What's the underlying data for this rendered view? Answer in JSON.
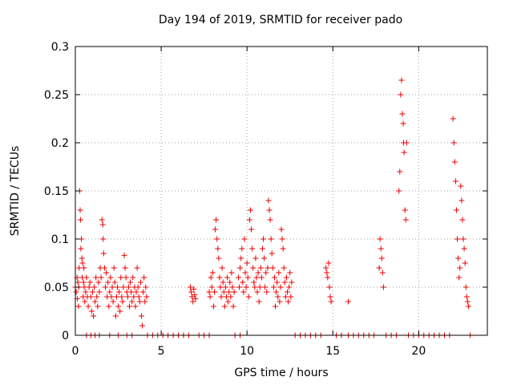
{
  "chart_data": {
    "type": "scatter",
    "title": "Day 194 of 2019, SRMTID for receiver pado",
    "xlabel": "GPS time / hours",
    "ylabel": "SRMTID / TECUs",
    "xlim": [
      0,
      24
    ],
    "ylim": [
      0,
      0.3
    ],
    "xticks": [
      0,
      5,
      10,
      15,
      20
    ],
    "xtick_labels": [
      "0",
      "5",
      "10",
      "15",
      "20"
    ],
    "yticks": [
      0,
      0.05,
      0.1,
      0.15,
      0.2,
      0.25,
      0.3
    ],
    "ytick_labels": [
      "0",
      "0.05",
      "0.1",
      "0.15",
      "0.2",
      "0.25",
      "0.3"
    ],
    "grid": true,
    "marker": "+",
    "color": "#ee0000",
    "series": [
      {
        "name": "SRMTID",
        "points": [
          [
            0.0,
            0.05
          ],
          [
            0.05,
            0.045
          ],
          [
            0.1,
            0.06
          ],
          [
            0.12,
            0.038
          ],
          [
            0.15,
            0.055
          ],
          [
            0.18,
            0.03
          ],
          [
            0.2,
            0.05
          ],
          [
            0.22,
            0.07
          ],
          [
            0.25,
            0.15
          ],
          [
            0.28,
            0.13
          ],
          [
            0.3,
            0.12
          ],
          [
            0.32,
            0.09
          ],
          [
            0.35,
            0.1
          ],
          [
            0.38,
            0.08
          ],
          [
            0.4,
            0.06
          ],
          [
            0.42,
            0.075
          ],
          [
            0.45,
            0.04
          ],
          [
            0.48,
            0.055
          ],
          [
            0.5,
            0.07
          ],
          [
            0.52,
            0.05
          ],
          [
            0.55,
            0.035
          ],
          [
            0.6,
            0.045
          ],
          [
            0.65,
            0.06
          ],
          [
            0.7,
            0.04
          ],
          [
            0.75,
            0.03
          ],
          [
            0.8,
            0.05
          ],
          [
            0.85,
            0.055
          ],
          [
            0.9,
            0.04
          ],
          [
            0.95,
            0.025
          ],
          [
            1.0,
            0.045
          ],
          [
            1.05,
            0.02
          ],
          [
            1.1,
            0.05
          ],
          [
            1.15,
            0.035
          ],
          [
            1.2,
            0.06
          ],
          [
            1.25,
            0.04
          ],
          [
            1.3,
            0.03
          ],
          [
            1.35,
            0.055
          ],
          [
            1.4,
            0.045
          ],
          [
            1.45,
            0.07
          ],
          [
            1.5,
            0.06
          ],
          [
            1.55,
            0.12
          ],
          [
            1.6,
            0.115
          ],
          [
            1.62,
            0.1
          ],
          [
            1.65,
            0.085
          ],
          [
            1.7,
            0.07
          ],
          [
            1.75,
            0.05
          ],
          [
            1.8,
            0.065
          ],
          [
            1.85,
            0.04
          ],
          [
            1.9,
            0.055
          ],
          [
            1.95,
            0.03
          ],
          [
            2.0,
            0.045
          ],
          [
            2.05,
            0.06
          ],
          [
            2.1,
            0.04
          ],
          [
            2.15,
            0.05
          ],
          [
            2.2,
            0.035
          ],
          [
            2.25,
            0.07
          ],
          [
            2.3,
            0.055
          ],
          [
            2.35,
            0.02
          ],
          [
            2.4,
            0.04
          ],
          [
            2.45,
            0.05
          ],
          [
            2.5,
            0.03
          ],
          [
            2.55,
            0.045
          ],
          [
            2.6,
            0.025
          ],
          [
            2.65,
            0.06
          ],
          [
            2.7,
            0.04
          ],
          [
            2.75,
            0.035
          ],
          [
            2.8,
            0.05
          ],
          [
            2.85,
            0.083
          ],
          [
            2.9,
            0.07
          ],
          [
            2.95,
            0.06
          ],
          [
            3.0,
            0.045
          ],
          [
            3.05,
            0.04
          ],
          [
            3.1,
            0.05
          ],
          [
            3.15,
            0.03
          ],
          [
            3.2,
            0.055
          ],
          [
            3.25,
            0.045
          ],
          [
            3.3,
            0.035
          ],
          [
            3.35,
            0.06
          ],
          [
            3.4,
            0.04
          ],
          [
            3.45,
            0.05
          ],
          [
            3.5,
            0.03
          ],
          [
            3.55,
            0.045
          ],
          [
            3.6,
            0.07
          ],
          [
            3.65,
            0.05
          ],
          [
            3.7,
            0.04
          ],
          [
            3.75,
            0.035
          ],
          [
            3.8,
            0.055
          ],
          [
            3.85,
            0.02
          ],
          [
            3.9,
            0.01
          ],
          [
            3.95,
            0.045
          ],
          [
            4.0,
            0.06
          ],
          [
            4.05,
            0.035
          ],
          [
            4.1,
            0.05
          ],
          [
            4.15,
            0.04
          ],
          [
            6.7,
            0.05
          ],
          [
            6.75,
            0.045
          ],
          [
            6.8,
            0.04
          ],
          [
            6.85,
            0.035
          ],
          [
            6.9,
            0.048
          ],
          [
            6.95,
            0.042
          ],
          [
            7.0,
            0.038
          ],
          [
            7.8,
            0.045
          ],
          [
            7.85,
            0.04
          ],
          [
            7.9,
            0.06
          ],
          [
            7.95,
            0.05
          ],
          [
            8.0,
            0.065
          ],
          [
            8.05,
            0.03
          ],
          [
            8.1,
            0.045
          ],
          [
            8.15,
            0.11
          ],
          [
            8.2,
            0.12
          ],
          [
            8.25,
            0.1
          ],
          [
            8.3,
            0.09
          ],
          [
            8.35,
            0.08
          ],
          [
            8.4,
            0.06
          ],
          [
            8.45,
            0.05
          ],
          [
            8.5,
            0.04
          ],
          [
            8.55,
            0.07
          ],
          [
            8.6,
            0.055
          ],
          [
            8.65,
            0.045
          ],
          [
            8.7,
            0.03
          ],
          [
            8.75,
            0.05
          ],
          [
            8.8,
            0.04
          ],
          [
            8.85,
            0.06
          ],
          [
            8.9,
            0.035
          ],
          [
            8.95,
            0.045
          ],
          [
            9.0,
            0.055
          ],
          [
            9.05,
            0.04
          ],
          [
            9.1,
            0.065
          ],
          [
            9.15,
            0.05
          ],
          [
            9.2,
            0.03
          ],
          [
            9.25,
            0.045
          ],
          [
            9.5,
            0.06
          ],
          [
            9.55,
            0.05
          ],
          [
            9.6,
            0.07
          ],
          [
            9.65,
            0.08
          ],
          [
            9.7,
            0.09
          ],
          [
            9.75,
            0.055
          ],
          [
            9.8,
            0.045
          ],
          [
            9.85,
            0.1
          ],
          [
            9.9,
            0.065
          ],
          [
            9.95,
            0.05
          ],
          [
            10.0,
            0.075
          ],
          [
            10.05,
            0.06
          ],
          [
            10.1,
            0.04
          ],
          [
            10.15,
            0.12
          ],
          [
            10.2,
            0.13
          ],
          [
            10.25,
            0.11
          ],
          [
            10.3,
            0.09
          ],
          [
            10.35,
            0.07
          ],
          [
            10.4,
            0.055
          ],
          [
            10.45,
            0.05
          ],
          [
            10.5,
            0.08
          ],
          [
            10.55,
            0.06
          ],
          [
            10.6,
            0.045
          ],
          [
            10.65,
            0.065
          ],
          [
            10.7,
            0.035
          ],
          [
            10.75,
            0.05
          ],
          [
            10.8,
            0.07
          ],
          [
            10.85,
            0.06
          ],
          [
            10.9,
            0.09
          ],
          [
            10.95,
            0.1
          ],
          [
            11.0,
            0.08
          ],
          [
            11.05,
            0.05
          ],
          [
            11.1,
            0.065
          ],
          [
            11.15,
            0.045
          ],
          [
            11.2,
            0.07
          ],
          [
            11.25,
            0.14
          ],
          [
            11.3,
            0.13
          ],
          [
            11.35,
            0.12
          ],
          [
            11.4,
            0.1
          ],
          [
            11.45,
            0.085
          ],
          [
            11.5,
            0.07
          ],
          [
            11.55,
            0.05
          ],
          [
            11.6,
            0.06
          ],
          [
            11.65,
            0.03
          ],
          [
            11.7,
            0.045
          ],
          [
            11.75,
            0.055
          ],
          [
            11.8,
            0.04
          ],
          [
            11.85,
            0.065
          ],
          [
            11.9,
            0.035
          ],
          [
            11.95,
            0.05
          ],
          [
            12.0,
            0.11
          ],
          [
            12.05,
            0.1
          ],
          [
            12.1,
            0.09
          ],
          [
            12.15,
            0.07
          ],
          [
            12.2,
            0.055
          ],
          [
            12.25,
            0.04
          ],
          [
            12.3,
            0.06
          ],
          [
            12.35,
            0.045
          ],
          [
            12.4,
            0.035
          ],
          [
            12.45,
            0.05
          ],
          [
            12.5,
            0.065
          ],
          [
            12.55,
            0.04
          ],
          [
            12.6,
            0.055
          ],
          [
            14.6,
            0.07
          ],
          [
            14.65,
            0.065
          ],
          [
            14.7,
            0.06
          ],
          [
            14.75,
            0.075
          ],
          [
            14.8,
            0.05
          ],
          [
            14.85,
            0.04
          ],
          [
            14.9,
            0.035
          ],
          [
            15.9,
            0.035
          ],
          [
            17.7,
            0.07
          ],
          [
            17.75,
            0.1
          ],
          [
            17.8,
            0.09
          ],
          [
            17.85,
            0.08
          ],
          [
            17.9,
            0.065
          ],
          [
            17.95,
            0.05
          ],
          [
            18.85,
            0.15
          ],
          [
            18.9,
            0.17
          ],
          [
            18.95,
            0.25
          ],
          [
            19.0,
            0.265
          ],
          [
            19.05,
            0.23
          ],
          [
            19.1,
            0.22
          ],
          [
            19.12,
            0.2
          ],
          [
            19.15,
            0.19
          ],
          [
            19.2,
            0.13
          ],
          [
            19.25,
            0.12
          ],
          [
            19.3,
            0.2
          ],
          [
            22.0,
            0.225
          ],
          [
            22.05,
            0.2
          ],
          [
            22.1,
            0.18
          ],
          [
            22.15,
            0.16
          ],
          [
            22.2,
            0.13
          ],
          [
            22.25,
            0.1
          ],
          [
            22.3,
            0.08
          ],
          [
            22.35,
            0.06
          ],
          [
            22.4,
            0.07
          ],
          [
            22.45,
            0.155
          ],
          [
            22.5,
            0.14
          ],
          [
            22.55,
            0.12
          ],
          [
            22.6,
            0.1
          ],
          [
            22.65,
            0.09
          ],
          [
            22.7,
            0.075
          ],
          [
            22.75,
            0.05
          ],
          [
            22.8,
            0.04
          ],
          [
            22.85,
            0.035
          ],
          [
            22.9,
            0.03
          ]
        ],
        "zeros": [
          0.65,
          0.9,
          1.15,
          1.4,
          2.0,
          2.5,
          3.0,
          3.3,
          4.2,
          4.5,
          4.8,
          5.1,
          5.4,
          5.7,
          6.0,
          6.3,
          6.6,
          7.2,
          7.5,
          7.8,
          9.3,
          9.6,
          12.8,
          13.1,
          13.4,
          13.7,
          14.0,
          14.3,
          15.2,
          15.5,
          15.9,
          16.2,
          16.5,
          16.8,
          17.1,
          17.4,
          18.1,
          18.4,
          18.7,
          19.4,
          19.7,
          20.0,
          20.3,
          20.6,
          20.9,
          21.2,
          21.5,
          21.8,
          23.0
        ]
      }
    ]
  }
}
